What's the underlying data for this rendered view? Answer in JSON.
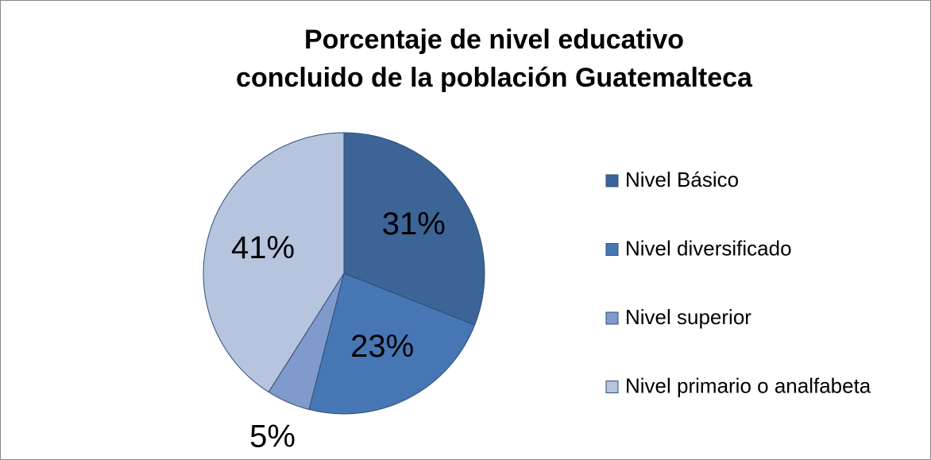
{
  "chart_data": {
    "type": "pie",
    "title": [
      "Porcentaje de nivel educativo",
      "concluido de la población Guatemalteca"
    ],
    "categories": [
      "Nivel Básico",
      "Nivel diversificado",
      "Nivel superior",
      "Nivel primario o analfabeta"
    ],
    "values": [
      31,
      23,
      5,
      41
    ],
    "value_labels": [
      "31%",
      "23%",
      "5%",
      "41%"
    ],
    "colors": [
      "#3c6496",
      "#4677b4",
      "#7f9acb",
      "#b7c4de"
    ],
    "legend": "right"
  }
}
